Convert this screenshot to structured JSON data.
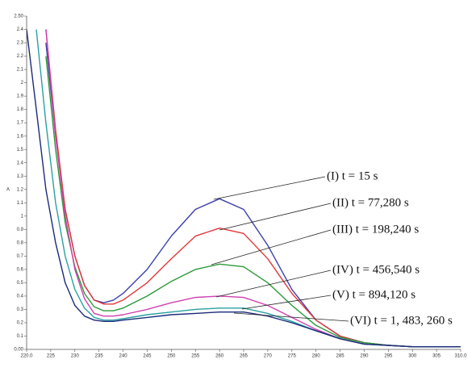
{
  "chart_data": {
    "type": "line",
    "y_label": "A",
    "x": [
      220,
      222,
      224,
      226,
      228,
      230,
      232,
      234,
      236,
      238,
      240,
      245,
      250,
      255,
      260,
      265,
      270,
      275,
      280,
      285,
      290,
      295,
      300,
      305,
      310
    ],
    "series": [
      {
        "name": "(I) t = 15 s",
        "color": "#3b3fa8",
        "values": [
          null,
          null,
          2.3,
          1.6,
          1.05,
          0.7,
          0.48,
          0.37,
          0.35,
          0.37,
          0.42,
          0.6,
          0.85,
          1.05,
          1.13,
          1.05,
          0.78,
          0.45,
          0.22,
          0.1,
          0.05,
          0.03,
          0.02,
          0.02,
          0.02
        ]
      },
      {
        "name": "(II) t = 77,280 s",
        "color": "#e0383a",
        "values": [
          null,
          null,
          2.4,
          1.65,
          1.05,
          0.7,
          0.48,
          0.37,
          0.34,
          0.34,
          0.37,
          0.5,
          0.68,
          0.85,
          0.91,
          0.87,
          0.68,
          0.42,
          0.22,
          0.1,
          0.05,
          0.03,
          0.02,
          0.02,
          0.02
        ]
      },
      {
        "name": "(III) t = 198,240 s",
        "color": "#2a9a3a",
        "values": [
          null,
          null,
          2.2,
          1.5,
          0.95,
          0.62,
          0.42,
          0.32,
          0.29,
          0.29,
          0.31,
          0.4,
          0.51,
          0.6,
          0.64,
          0.62,
          0.5,
          0.33,
          0.18,
          0.09,
          0.05,
          0.03,
          0.02,
          0.02,
          0.02
        ]
      },
      {
        "name": "(IV) t = 456,540 s",
        "color": "#d040b0",
        "values": [
          null,
          null,
          2.4,
          1.6,
          1.0,
          0.6,
          0.38,
          0.27,
          0.25,
          0.25,
          0.26,
          0.3,
          0.35,
          0.39,
          0.4,
          0.39,
          0.33,
          0.24,
          0.15,
          0.08,
          0.04,
          0.03,
          0.02,
          0.02,
          0.02
        ]
      },
      {
        "name": "(V) t = 894,120 s",
        "color": "#2aa0a0",
        "values": [
          null,
          2.4,
          1.7,
          1.1,
          0.7,
          0.45,
          0.31,
          0.24,
          0.22,
          0.22,
          0.23,
          0.26,
          0.28,
          0.3,
          0.31,
          0.31,
          0.27,
          0.21,
          0.14,
          0.08,
          0.04,
          0.03,
          0.02,
          0.02,
          0.02
        ]
      },
      {
        "name": "(VI) t = 1, 483, 260 s",
        "color": "#1a2a78",
        "values": [
          2.4,
          1.8,
          1.2,
          0.8,
          0.5,
          0.33,
          0.25,
          0.22,
          0.21,
          0.21,
          0.22,
          0.24,
          0.26,
          0.27,
          0.28,
          0.28,
          0.25,
          0.2,
          0.14,
          0.08,
          0.04,
          0.03,
          0.02,
          0.02,
          0.02
        ]
      }
    ],
    "xlim": [
      220,
      310
    ],
    "xticks": [
      {
        "value": 220,
        "label": "220.0"
      },
      225,
      230,
      235,
      240,
      245,
      250,
      255,
      260,
      265,
      270,
      275,
      280,
      285,
      290,
      295,
      300,
      305,
      {
        "value": 310,
        "label": "310.0"
      }
    ],
    "ylim": [
      0,
      2.5
    ],
    "yticks": [
      {
        "value": 0,
        "label": "0.00"
      },
      0.1,
      0.2,
      0.3,
      0.4,
      0.5,
      0.6,
      0.7,
      0.8,
      0.9,
      1.0,
      1.1,
      1.2,
      1.3,
      1.4,
      1.5,
      1.6,
      1.7,
      1.8,
      1.9,
      2.0,
      2.1,
      2.2,
      2.3,
      2.4,
      {
        "value": 2.5,
        "label": "2.50"
      }
    ]
  }
}
